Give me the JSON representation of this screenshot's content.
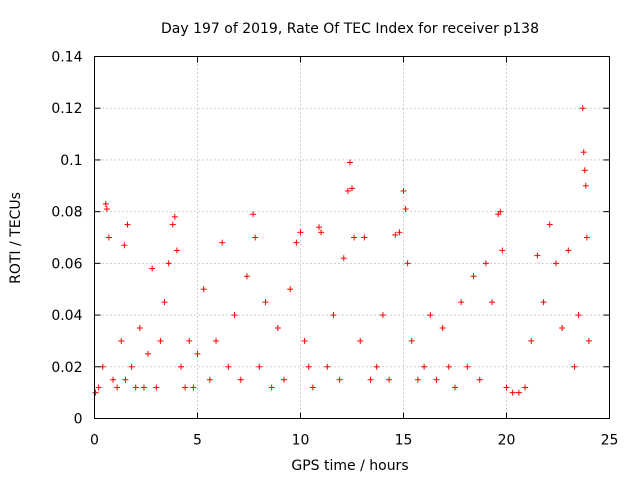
{
  "chart_data": {
    "type": "scatter",
    "title": "Day 197 of 2019, Rate Of TEC Index for receiver p138",
    "xlabel": "GPS time / hours",
    "ylabel": "ROTI / TECUs",
    "xlim": [
      0,
      25
    ],
    "ylim": [
      0,
      0.14
    ],
    "xticks": [
      0,
      5,
      10,
      15,
      20,
      25
    ],
    "xtick_labels": [
      "0",
      "5",
      "10",
      "15",
      "20",
      "25"
    ],
    "yticks": [
      0,
      0.02,
      0.04,
      0.06,
      0.08,
      0.1,
      0.12,
      0.14
    ],
    "ytick_labels": [
      "0",
      "0.02",
      "0.04",
      "0.06",
      "0.08",
      "0.1",
      "0.12",
      "0.14"
    ],
    "grid": true,
    "marker": "+",
    "color": "#ff0000",
    "series": [
      {
        "name": "ROTI",
        "x": [
          0.05,
          0.2,
          0.4,
          0.55,
          0.6,
          0.7,
          0.9,
          1.1,
          1.3,
          1.45,
          1.5,
          1.6,
          1.8,
          2.0,
          2.2,
          2.4,
          2.6,
          2.8,
          3.0,
          3.2,
          3.4,
          3.6,
          3.8,
          3.9,
          4.0,
          4.2,
          4.4,
          4.6,
          4.8,
          5.0,
          5.3,
          5.6,
          5.9,
          6.2,
          6.5,
          6.8,
          7.1,
          7.4,
          7.7,
          7.8,
          8.0,
          8.3,
          8.6,
          8.9,
          9.2,
          9.5,
          9.8,
          10.0,
          10.2,
          10.4,
          10.6,
          10.9,
          11.0,
          11.3,
          11.6,
          11.9,
          12.1,
          12.3,
          12.4,
          12.5,
          12.6,
          12.9,
          13.1,
          13.4,
          13.7,
          14.0,
          14.3,
          14.6,
          14.8,
          15.0,
          15.1,
          15.2,
          15.4,
          15.7,
          16.0,
          16.3,
          16.6,
          16.9,
          17.2,
          17.5,
          17.8,
          18.1,
          18.4,
          18.7,
          19.0,
          19.3,
          19.6,
          19.7,
          19.8,
          20.0,
          20.3,
          20.6,
          20.9,
          21.2,
          21.5,
          21.8,
          22.1,
          22.4,
          22.7,
          23.0,
          23.3,
          23.5,
          23.7,
          23.75,
          23.8,
          23.85,
          23.9,
          24.0
        ],
        "y": [
          0.01,
          0.012,
          0.02,
          0.083,
          0.081,
          0.07,
          0.015,
          0.012,
          0.03,
          0.067,
          0.015,
          0.075,
          0.02,
          0.012,
          0.035,
          0.012,
          0.025,
          0.058,
          0.012,
          0.03,
          0.045,
          0.06,
          0.075,
          0.078,
          0.065,
          0.02,
          0.012,
          0.03,
          0.012,
          0.025,
          0.05,
          0.015,
          0.03,
          0.068,
          0.02,
          0.04,
          0.015,
          0.055,
          0.079,
          0.07,
          0.02,
          0.045,
          0.012,
          0.035,
          0.015,
          0.05,
          0.068,
          0.072,
          0.03,
          0.02,
          0.012,
          0.074,
          0.072,
          0.02,
          0.04,
          0.015,
          0.062,
          0.088,
          0.099,
          0.089,
          0.07,
          0.03,
          0.07,
          0.015,
          0.02,
          0.04,
          0.015,
          0.071,
          0.072,
          0.088,
          0.081,
          0.06,
          0.03,
          0.015,
          0.02,
          0.04,
          0.015,
          0.035,
          0.02,
          0.012,
          0.045,
          0.02,
          0.055,
          0.015,
          0.06,
          0.045,
          0.079,
          0.08,
          0.065,
          0.012,
          0.01,
          0.01,
          0.012,
          0.03,
          0.063,
          0.045,
          0.075,
          0.06,
          0.035,
          0.065,
          0.02,
          0.04,
          0.12,
          0.103,
          0.096,
          0.09,
          0.07,
          0.03
        ]
      }
    ]
  }
}
